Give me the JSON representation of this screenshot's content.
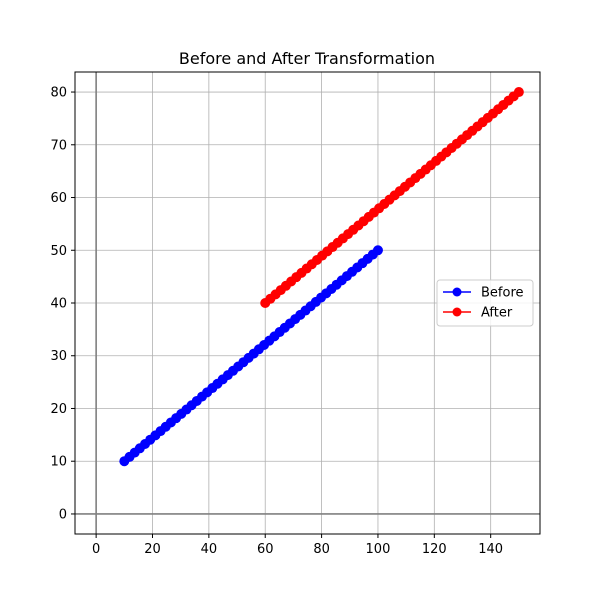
{
  "chart_data": {
    "type": "line",
    "title": "Before and After Transformation",
    "xlabel": "",
    "ylabel": "",
    "xlim": [
      -7.5,
      157.5
    ],
    "ylim": [
      -3.8,
      83.8
    ],
    "x_ticks": [
      0,
      20,
      40,
      60,
      80,
      100,
      120,
      140
    ],
    "y_ticks": [
      0,
      10,
      20,
      30,
      40,
      50,
      60,
      70,
      80
    ],
    "grid": true,
    "reference_lines": {
      "x": 0,
      "y": 0,
      "color": "#808080"
    },
    "legend": {
      "placement": "center-right",
      "entries": [
        "Before",
        "After"
      ]
    },
    "series": [
      {
        "name": "Before",
        "color": "#0000ff",
        "marker": "circle",
        "line": "solid",
        "start": [
          10,
          10
        ],
        "end": [
          100,
          50
        ],
        "points": 50
      },
      {
        "name": "After",
        "color": "#ff0000",
        "marker": "circle",
        "line": "solid",
        "start": [
          60,
          40
        ],
        "end": [
          150,
          80
        ],
        "points": 50
      }
    ]
  }
}
